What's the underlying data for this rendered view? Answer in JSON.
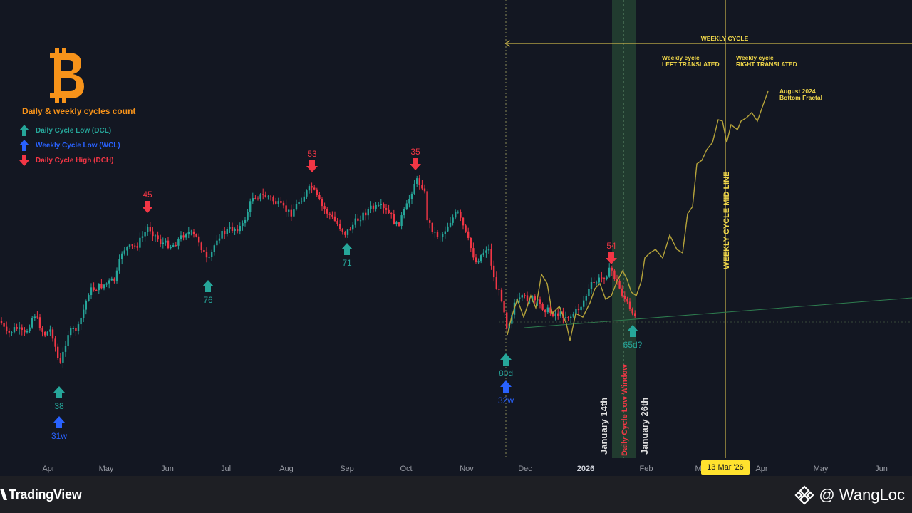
{
  "chart_data": {
    "type": "candlestick",
    "title": "Daily & weekly cycles count",
    "legend": [
      {
        "label": "Daily Cycle Low (DCL)",
        "color": "#26a69a",
        "marker": "arrow-up"
      },
      {
        "label": "Weekly Cycle Low (WCL)",
        "color": "#2962ff",
        "marker": "arrow-up"
      },
      {
        "label": "Daily Cycle High (DCH)",
        "color": "#f23645",
        "marker": "arrow-down"
      }
    ],
    "x_axis_labels": [
      "Apr",
      "May",
      "Jun",
      "Jul",
      "Aug",
      "Sep",
      "Oct",
      "Nov",
      "Dec",
      "2026",
      "Feb",
      "Mar",
      "Apr",
      "May",
      "Jun"
    ],
    "highlighted_date": "13 Mar '26",
    "cycle_markers": [
      {
        "type": "DCL",
        "label": "38",
        "date": "Apr"
      },
      {
        "type": "WCL",
        "label": "31w",
        "date": "Apr"
      },
      {
        "type": "DCH",
        "label": "45",
        "date": "May"
      },
      {
        "type": "DCL",
        "label": "76",
        "date": "Jun"
      },
      {
        "type": "DCH",
        "label": "53",
        "date": "Aug"
      },
      {
        "type": "DCL",
        "label": "71",
        "date": "Sep"
      },
      {
        "type": "DCH",
        "label": "35",
        "date": "Oct"
      },
      {
        "type": "DCL",
        "label": "80d",
        "date": "Nov"
      },
      {
        "type": "WCL",
        "label": "32w",
        "date": "Nov"
      },
      {
        "type": "DCH",
        "label": "54",
        "date": "Jan"
      },
      {
        "type": "DCL",
        "label": "65d?",
        "date": "Jan"
      }
    ],
    "annotations": {
      "weekly_cycle": "WEEKLY CYCLE",
      "left_translated": [
        "Weekly cycle",
        "LEFT TRANSLATED"
      ],
      "right_translated": [
        "Weekly cycle",
        "RIGHT TRANSLATED"
      ],
      "fractal": [
        "August 2024",
        "Bottom Fractal"
      ],
      "mid_line": "WEEKLY CYCLE MID LINE",
      "window_start": "January 14th",
      "window_label": "Daily Cycle Low Window",
      "window_end": "January 26th"
    },
    "colors": {
      "up": "#26a69a",
      "down": "#f23645",
      "fractal": "#b5a33a",
      "annotation": "#f0d74a",
      "window_fill": "#2e5a3a",
      "support": "#2e7d4f"
    }
  },
  "branding": {
    "platform": "TradingView",
    "author": "@ WangLoc"
  }
}
